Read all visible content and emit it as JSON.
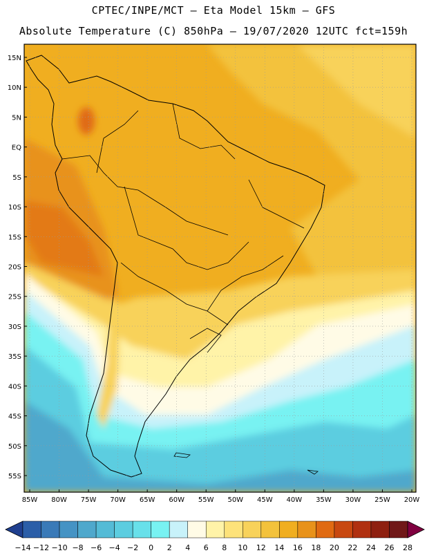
{
  "title_line1": "CPTEC/INPE/MCT –  Eta Model 15km – GFS",
  "title_line2": "Absolute Temperature (C) 850hPa – 19/07/2020 12UTC fct=159h",
  "lat_labels": [
    "15N",
    "10N",
    "5N",
    "EQ",
    "5S",
    "10S",
    "15S",
    "20S",
    "25S",
    "30S",
    "35S",
    "40S",
    "45S",
    "50S",
    "55S"
  ],
  "lon_labels": [
    "85W",
    "80W",
    "75W",
    "70W",
    "65W",
    "60W",
    "55W",
    "50W",
    "45W",
    "40W",
    "35W",
    "30W",
    "25W",
    "20W"
  ],
  "colorbar": {
    "ticks": [
      "-14",
      "-12",
      "-10",
      "-8",
      "-6",
      "-4",
      "-2",
      "0",
      "2",
      "4",
      "6",
      "8",
      "10",
      "12",
      "14",
      "16",
      "18",
      "20",
      "22",
      "24",
      "26",
      "28"
    ],
    "colors": [
      "#1f3f8f",
      "#2b5ea8",
      "#3a7ab8",
      "#4593c4",
      "#4fa8cc",
      "#54bbd6",
      "#5ccde0",
      "#68e0ea",
      "#78f2f2",
      "#c8f2fa",
      "#fffbe6",
      "#fff3a8",
      "#fde27a",
      "#f8d25a",
      "#f3c23c",
      "#f0ae20",
      "#e8921a",
      "#e06a12",
      "#c84810",
      "#b03010",
      "#8e2010",
      "#701818",
      "#800040"
    ]
  },
  "map_colors": {
    "ocean_cold": "#4fa8cc",
    "ocean_cool": "#5ccde0",
    "ocean_mild": "#78f2f2",
    "pale": "#c8f2fa",
    "cream": "#fffbe6",
    "light_yellow": "#fff3a8",
    "yellow": "#fde27a",
    "gold": "#f3c23c",
    "orange": "#f0ae20",
    "dark_orange": "#e8921a",
    "hot": "#e06a12"
  }
}
